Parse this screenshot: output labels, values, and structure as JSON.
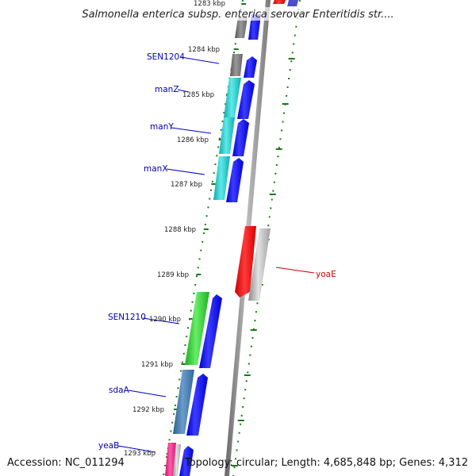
{
  "title": "Salmonella enterica subsp. enterica serovar Enteritidis str....",
  "accession": "Accession: NC_011294",
  "summary": "Topology: circular; Length: 4,685,848 bp; Genes: 4,312",
  "colors": {
    "backbone": "#8c8c8c",
    "tick": "#1a7a1a",
    "forward_gene": "#0000ee",
    "label_blue": "#0000aa",
    "label_red": "#cc0000"
  },
  "ticks": [
    {
      "label": "1283 kbp"
    },
    {
      "label": "1284 kbp"
    },
    {
      "label": "1285 kbp"
    },
    {
      "label": "1286 kbp"
    },
    {
      "label": "1287 kbp"
    },
    {
      "label": "1288 kbp"
    },
    {
      "label": "1289 kbp"
    },
    {
      "label": "1290 kbp"
    },
    {
      "label": "1291 kbp"
    },
    {
      "label": "1292 kbp"
    },
    {
      "label": "1293 kbp"
    }
  ],
  "gene_labels": [
    {
      "text": "SEN1204",
      "color": "#0000aa"
    },
    {
      "text": "manZ",
      "color": "#0000aa"
    },
    {
      "text": "manY",
      "color": "#0000aa"
    },
    {
      "text": "manX",
      "color": "#0000aa"
    },
    {
      "text": "yoaE",
      "color": "#cc0000"
    },
    {
      "text": "SEN1210",
      "color": "#0000aa"
    },
    {
      "text": "sdaA",
      "color": "#0000aa"
    },
    {
      "text": "yeaB",
      "color": "#0000aa"
    }
  ]
}
